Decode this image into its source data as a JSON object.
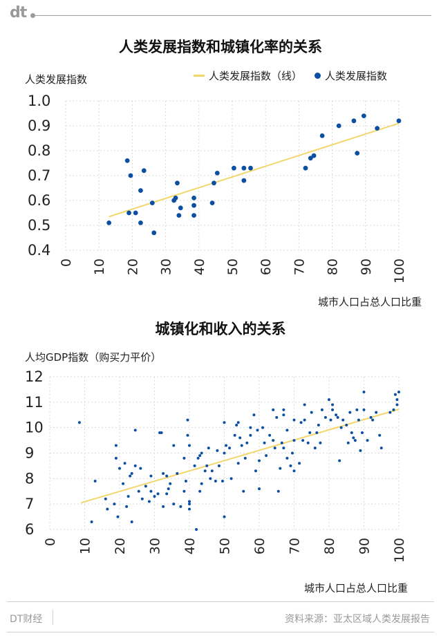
{
  "header": {
    "logo_text": "dt"
  },
  "chart_data": [
    {
      "type": "scatter",
      "title": "人类发展指数和城镇化率的关系",
      "ylabel": "人类发展指数",
      "xlabel": "城市人口占总人口比重",
      "xlim": [
        0,
        100
      ],
      "ylim": [
        0.4,
        1.0
      ],
      "xticks": [
        0,
        10,
        20,
        30,
        40,
        50,
        60,
        70,
        80,
        90,
        100
      ],
      "yticks": [
        0.4,
        0.5,
        0.6,
        0.7,
        0.8,
        0.9,
        1.0
      ],
      "ytick_labels": [
        "0.4",
        "0.5",
        "0.6",
        "0.7",
        "0.8",
        "0.9",
        "1.0"
      ],
      "grid": "dashed",
      "legend": {
        "position": "top-right",
        "line_label": "人类发展指数（线）",
        "dot_label": "人类发展指数"
      },
      "colors": {
        "points": "#0b4fa3",
        "trend": "#f2d66a"
      },
      "trend": {
        "x": [
          13,
          100
        ],
        "y": [
          0.535,
          0.91
        ]
      },
      "points": [
        [
          13,
          0.51
        ],
        [
          18.5,
          0.76
        ],
        [
          19,
          0.55
        ],
        [
          19.5,
          0.7
        ],
        [
          21,
          0.55
        ],
        [
          22.5,
          0.51
        ],
        [
          22.5,
          0.64
        ],
        [
          23.5,
          0.72
        ],
        [
          26,
          0.59
        ],
        [
          26.5,
          0.47
        ],
        [
          32.5,
          0.6
        ],
        [
          33,
          0.61
        ],
        [
          33.5,
          0.67
        ],
        [
          34,
          0.54
        ],
        [
          34.5,
          0.57
        ],
        [
          38.5,
          0.54
        ],
        [
          38.5,
          0.58
        ],
        [
          38.5,
          0.61
        ],
        [
          44,
          0.59
        ],
        [
          44.5,
          0.67
        ],
        [
          45.5,
          0.71
        ],
        [
          50.5,
          0.73
        ],
        [
          53.5,
          0.68
        ],
        [
          53.5,
          0.73
        ],
        [
          55.5,
          0.73
        ],
        [
          72,
          0.73
        ],
        [
          73.5,
          0.77
        ],
        [
          74.5,
          0.78
        ],
        [
          77,
          0.86
        ],
        [
          82,
          0.9
        ],
        [
          86.5,
          0.92
        ],
        [
          87.5,
          0.79
        ],
        [
          89.5,
          0.94
        ],
        [
          93.5,
          0.89
        ],
        [
          100,
          0.92
        ]
      ]
    },
    {
      "type": "scatter",
      "title": "城镇化和收入的关系",
      "ylabel": "人均GDP指数（购买力平价）",
      "xlabel": "城市人口占总人口比重",
      "xlim": [
        0,
        100
      ],
      "ylim": [
        6,
        12
      ],
      "xticks": [
        0,
        10,
        20,
        30,
        40,
        50,
        60,
        70,
        80,
        90,
        100
      ],
      "yticks": [
        6,
        7,
        8,
        9,
        10,
        11,
        12
      ],
      "ytick_labels": [
        "6",
        "7",
        "8",
        "9",
        "10",
        "11",
        "12"
      ],
      "grid": "dashed",
      "colors": {
        "points": "#0b4fa3",
        "trend": "#f2d66a"
      },
      "trend": {
        "x": [
          9,
          100
        ],
        "y": [
          7.05,
          10.72
        ]
      },
      "points": [
        [
          8.5,
          10.2
        ],
        [
          12,
          6.3
        ],
        [
          13,
          7.9
        ],
        [
          16,
          7.2
        ],
        [
          16.5,
          6.8
        ],
        [
          18.5,
          7.0
        ],
        [
          19,
          8.8
        ],
        [
          19,
          9.3
        ],
        [
          19.5,
          6.5
        ],
        [
          20,
          8.4
        ],
        [
          21,
          7.8
        ],
        [
          21.5,
          8.6
        ],
        [
          22,
          6.9
        ],
        [
          22.5,
          7.3
        ],
        [
          23,
          8.1
        ],
        [
          23.5,
          8.2
        ],
        [
          23.5,
          6.3
        ],
        [
          24.5,
          9.9
        ],
        [
          24.5,
          8.5
        ],
        [
          25.5,
          7.5
        ],
        [
          26,
          8.4
        ],
        [
          26.5,
          7.2
        ],
        [
          27.5,
          7.7
        ],
        [
          28.5,
          7.1
        ],
        [
          29,
          7.5
        ],
        [
          29,
          8.1
        ],
        [
          30,
          7.3
        ],
        [
          31,
          7.4
        ],
        [
          31.5,
          9.8
        ],
        [
          32,
          9.8
        ],
        [
          32.5,
          6.9
        ],
        [
          32.5,
          8.2
        ],
        [
          33.5,
          7.4
        ],
        [
          33.5,
          8.1
        ],
        [
          34,
          7.6
        ],
        [
          34.5,
          7.8
        ],
        [
          35.5,
          7.0
        ],
        [
          35.5,
          9.3
        ],
        [
          36.5,
          8.2
        ],
        [
          37.5,
          6.9
        ],
        [
          38.5,
          8.8
        ],
        [
          38.5,
          7.5
        ],
        [
          39,
          7.9
        ],
        [
          39.5,
          9.7
        ],
        [
          39.5,
          10.3
        ],
        [
          40,
          9.3
        ],
        [
          40,
          7.1
        ],
        [
          40,
          7.0
        ],
        [
          40,
          6.8
        ],
        [
          41.5,
          8.5
        ],
        [
          42,
          6.0
        ],
        [
          42.5,
          8.8
        ],
        [
          43,
          7.5
        ],
        [
          43,
          8.9
        ],
        [
          43.5,
          7.8
        ],
        [
          43.5,
          9.0
        ],
        [
          44.5,
          8.3
        ],
        [
          45,
          8.5
        ],
        [
          45.5,
          9.2
        ],
        [
          46,
          8.0
        ],
        [
          46.5,
          8.3
        ],
        [
          47.5,
          7.9
        ],
        [
          48,
          9.1
        ],
        [
          48.5,
          8.5
        ],
        [
          49.5,
          7.9
        ],
        [
          50,
          9.0
        ],
        [
          50,
          10.2
        ],
        [
          50,
          6.5
        ],
        [
          50.5,
          9.3
        ],
        [
          51.5,
          9.2
        ],
        [
          52,
          8.0
        ],
        [
          53,
          9.7
        ],
        [
          53.5,
          10.1
        ],
        [
          54,
          10.2
        ],
        [
          54,
          8.6
        ],
        [
          54.5,
          9.6
        ],
        [
          55,
          9.3
        ],
        [
          55.5,
          7.5
        ],
        [
          56,
          8.8
        ],
        [
          56.5,
          9.4
        ],
        [
          57.5,
          9.7
        ],
        [
          57.5,
          10.0
        ],
        [
          58.5,
          10.5
        ],
        [
          59,
          8.3
        ],
        [
          59.5,
          9.9
        ],
        [
          60,
          7.6
        ],
        [
          60,
          8.7
        ],
        [
          61,
          10.0
        ],
        [
          61.5,
          9.4
        ],
        [
          62,
          8.9
        ],
        [
          63,
          9.7
        ],
        [
          64,
          9.5
        ],
        [
          64,
          10.7
        ],
        [
          64.5,
          9.2
        ],
        [
          65,
          10.4
        ],
        [
          65.5,
          7.5
        ],
        [
          66,
          8.4
        ],
        [
          66.5,
          9.4
        ],
        [
          67,
          9.2
        ],
        [
          67,
          10.5
        ],
        [
          67,
          10.7
        ],
        [
          68,
          9.9
        ],
        [
          68,
          8.8
        ],
        [
          69,
          8.5
        ],
        [
          69.5,
          9.0
        ],
        [
          70,
          10.3
        ],
        [
          70,
          8.3
        ],
        [
          70,
          9.5
        ],
        [
          71.5,
          8.6
        ],
        [
          72,
          10.2
        ],
        [
          72.5,
          9.5
        ],
        [
          73,
          10.9
        ],
        [
          73,
          10.3
        ],
        [
          74,
          9.4
        ],
        [
          74.5,
          9.8
        ],
        [
          75,
          10.6
        ],
        [
          76,
          9.2
        ],
        [
          76.5,
          9.8
        ],
        [
          77,
          10.1
        ],
        [
          77.5,
          9.4
        ],
        [
          78,
          10.7
        ],
        [
          79,
          10.4
        ],
        [
          80,
          11.1
        ],
        [
          80.5,
          10.3
        ],
        [
          81,
          10.9
        ],
        [
          81,
          10.7
        ],
        [
          82,
          10.5
        ],
        [
          82.5,
          10.4
        ],
        [
          83,
          8.7
        ],
        [
          83.5,
          10.0
        ],
        [
          84,
          10.3
        ],
        [
          85,
          10.1
        ],
        [
          85.5,
          9.4
        ],
        [
          86,
          10.6
        ],
        [
          86.5,
          9.8
        ],
        [
          87,
          9.6
        ],
        [
          87.5,
          9.5
        ],
        [
          88,
          10.7
        ],
        [
          88.5,
          10.3
        ],
        [
          89,
          9.1
        ],
        [
          89.5,
          9.8
        ],
        [
          90,
          10.7
        ],
        [
          90,
          11.4
        ],
        [
          91,
          9.5
        ],
        [
          92,
          10.4
        ],
        [
          92.5,
          10.3
        ],
        [
          93.5,
          10.6
        ],
        [
          94.5,
          9.7
        ],
        [
          95,
          9.2
        ],
        [
          97.5,
          10.6
        ],
        [
          98.5,
          10.7
        ],
        [
          99,
          11.3
        ],
        [
          99.5,
          10.9
        ],
        [
          99.5,
          11.1
        ],
        [
          100,
          11.4
        ]
      ]
    }
  ],
  "footer": {
    "left": "DT财经",
    "source": "资料来源：亚太区域人类发展报告"
  }
}
